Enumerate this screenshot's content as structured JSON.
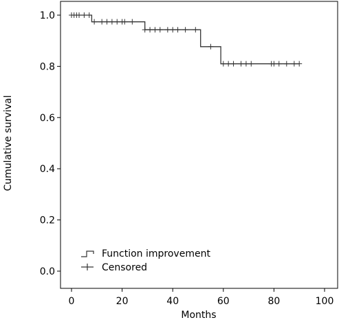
{
  "chart_data": {
    "type": "line",
    "subtype": "kaplan-meier",
    "title": "",
    "xlabel": "Months",
    "ylabel": "Cumulative survival",
    "xlim": [
      0,
      100
    ],
    "ylim": [
      0,
      1.0
    ],
    "x_ticks": [
      0,
      20,
      40,
      60,
      80,
      100
    ],
    "y_ticks": [
      "0.0",
      "0.2",
      "0.4",
      "0.6",
      "0.8",
      "1.0"
    ],
    "grid": false,
    "legend_position": "bottom-left",
    "series": [
      {
        "name": "Function improvement",
        "step_points": [
          [
            0,
            1.0
          ],
          [
            8,
            1.0
          ],
          [
            8,
            0.974
          ],
          [
            29,
            0.974
          ],
          [
            29,
            0.943
          ],
          [
            51,
            0.943
          ],
          [
            51,
            0.877
          ],
          [
            59,
            0.877
          ],
          [
            59,
            0.81
          ],
          [
            90,
            0.81
          ]
        ],
        "censored_x": [
          0,
          1,
          2,
          3,
          5,
          7,
          9,
          12,
          14,
          16,
          18,
          20,
          21,
          24,
          29,
          31,
          33,
          35,
          38,
          40,
          42,
          45,
          49,
          55,
          60,
          62,
          64,
          67,
          69,
          71,
          79,
          80,
          82,
          85,
          88,
          90
        ]
      }
    ],
    "legend": [
      {
        "label": "Function improvement",
        "marker": "step"
      },
      {
        "label": "Censored",
        "marker": "plus"
      }
    ],
    "color": "#333333"
  }
}
